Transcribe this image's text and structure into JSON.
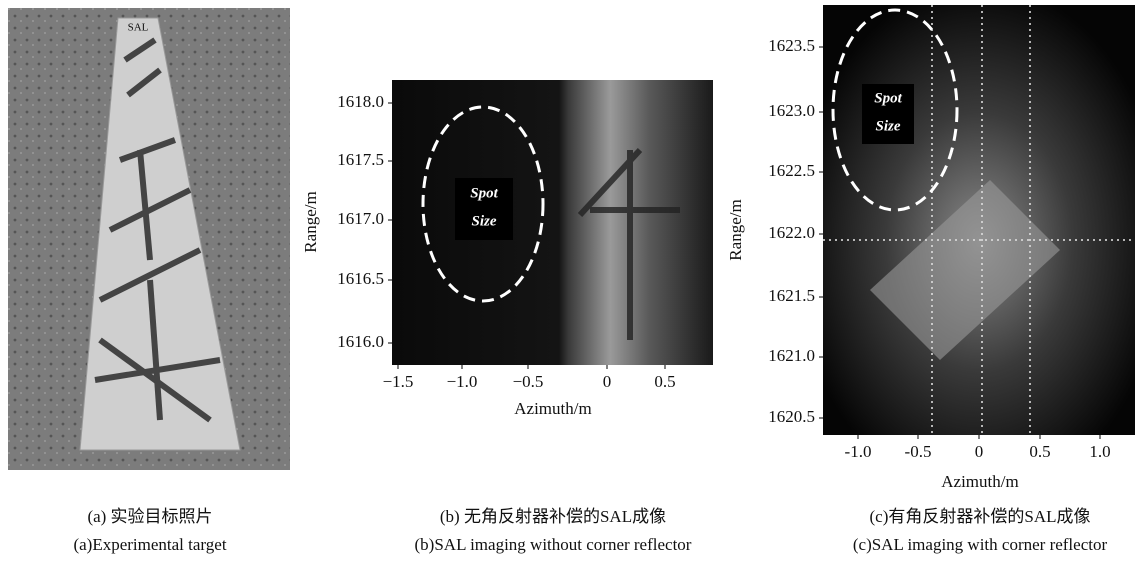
{
  "panels": [
    {
      "caption_cn": "(a) 实验目标照片",
      "caption_en": "(a)Experimental target",
      "image_text": "SAL"
    },
    {
      "caption_cn": "(b) 无角反射器补偿的SAL成像",
      "caption_en": "(b)SAL imaging without corner reflector",
      "xlabel": "Azimuth/m",
      "ylabel": "Range/m",
      "xticks": [
        "−1.5",
        "−1.0",
        "−0.5",
        "0",
        "0.5"
      ],
      "yticks": [
        "1618.0",
        "1617.5",
        "1617.0",
        "1616.5",
        "1616.0"
      ],
      "annotation": [
        "Spot",
        "Size"
      ]
    },
    {
      "caption_cn": "(c)有角反射器补偿的SAL成像",
      "caption_en": "(c)SAL imaging with corner reflector",
      "xlabel": "Azimuth/m",
      "ylabel": "Range/m",
      "xticks": [
        "-1.0",
        "-0.5",
        "0",
        "0.5",
        "1.0"
      ],
      "yticks": [
        "1623.5",
        "1623.0",
        "1622.5",
        "1622.0",
        "1621.5",
        "1621.0",
        "1620.5"
      ],
      "annotation": [
        "Spot",
        "Size"
      ]
    }
  ]
}
